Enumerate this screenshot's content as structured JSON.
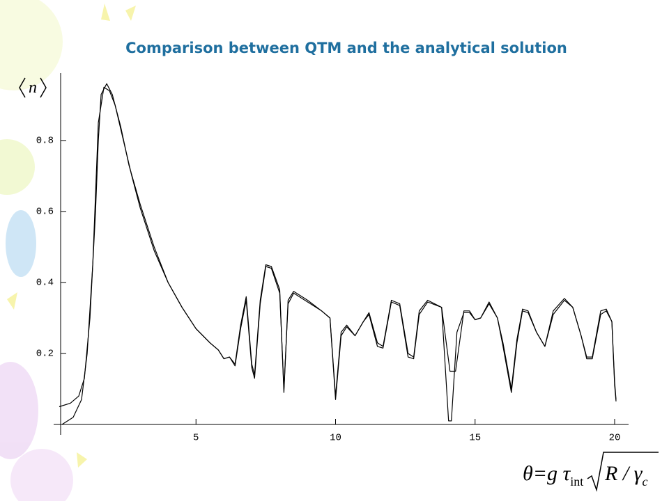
{
  "chart_data": {
    "type": "line",
    "title": "Comparison between QTM and the analytical solution",
    "y_label": "n",
    "x_label": {
      "main": "θ=g τ",
      "sub": "int",
      "root": "R / γ",
      "root_sub": "c"
    },
    "xlim": [
      -0.1,
      20.5
    ],
    "ylim": [
      0,
      0.99
    ],
    "xticks": [
      5,
      10,
      15,
      20
    ],
    "yticks": [
      0.2,
      0.4,
      0.6,
      0.8
    ],
    "series": [
      {
        "color": "#000000",
        "x": [
          0.1,
          0.5,
          0.8,
          1.0,
          1.2,
          1.4,
          1.5,
          1.6,
          1.8,
          2.0,
          2.3,
          2.6,
          3.0,
          3.5,
          4.0,
          4.5,
          5.0,
          5.5,
          5.8,
          6.0,
          6.2,
          6.4,
          6.6,
          6.8,
          7.0,
          7.1,
          7.3,
          7.5,
          7.7,
          8.0,
          8.15,
          8.3,
          8.5,
          9.0,
          9.5,
          9.8,
          10.0,
          10.2,
          10.4,
          10.7,
          11.0,
          11.2,
          11.5,
          11.7,
          12.0,
          12.3,
          12.6,
          12.8,
          13.0,
          13.3,
          13.8,
          14.1,
          14.3,
          14.6,
          14.8,
          15.0,
          15.2,
          15.5,
          15.8,
          16.0,
          16.3,
          16.5,
          16.7,
          16.9,
          17.2,
          17.5,
          17.8,
          18.2,
          18.5,
          18.8,
          19.0,
          19.2,
          19.5,
          19.7,
          19.9,
          20.0,
          20.05
        ],
        "values": [
          0.05,
          0.06,
          0.08,
          0.13,
          0.3,
          0.6,
          0.8,
          0.93,
          0.96,
          0.93,
          0.84,
          0.73,
          0.62,
          0.5,
          0.4,
          0.33,
          0.27,
          0.23,
          0.21,
          0.185,
          0.19,
          0.17,
          0.28,
          0.36,
          0.17,
          0.14,
          0.35,
          0.45,
          0.445,
          0.38,
          0.09,
          0.35,
          0.375,
          0.35,
          0.32,
          0.3,
          0.08,
          0.26,
          0.28,
          0.25,
          0.29,
          0.315,
          0.23,
          0.22,
          0.35,
          0.34,
          0.2,
          0.19,
          0.32,
          0.35,
          0.33,
          0.15,
          0.15,
          0.32,
          0.32,
          0.295,
          0.3,
          0.345,
          0.3,
          0.23,
          0.1,
          0.24,
          0.325,
          0.32,
          0.26,
          0.22,
          0.32,
          0.355,
          0.33,
          0.25,
          0.19,
          0.19,
          0.32,
          0.325,
          0.29,
          0.12,
          0.07
        ]
      },
      {
        "color": "#000000",
        "x": [
          0.2,
          0.6,
          0.9,
          1.1,
          1.3,
          1.5,
          1.7,
          1.9,
          2.1,
          2.4,
          2.7,
          3.0,
          3.5,
          4.0,
          4.5,
          5.0,
          5.5,
          5.8,
          6.0,
          6.2,
          6.4,
          6.6,
          6.8,
          7.0,
          7.1,
          7.3,
          7.5,
          7.7,
          8.0,
          8.15,
          8.3,
          8.5,
          9.0,
          9.5,
          9.8,
          10.0,
          10.2,
          10.4,
          10.7,
          11.0,
          11.2,
          11.5,
          11.7,
          12.0,
          12.3,
          12.6,
          12.8,
          13.0,
          13.3,
          13.8,
          14.05,
          14.15,
          14.35,
          14.6,
          14.8,
          15.0,
          15.2,
          15.5,
          15.8,
          16.0,
          16.3,
          16.5,
          16.7,
          16.9,
          17.2,
          17.5,
          17.8,
          18.2,
          18.5,
          18.8,
          19.0,
          19.2,
          19.5,
          19.7,
          19.9,
          20.0,
          20.05
        ],
        "values": [
          0.0,
          0.02,
          0.07,
          0.2,
          0.45,
          0.85,
          0.95,
          0.94,
          0.9,
          0.8,
          0.7,
          0.61,
          0.49,
          0.4,
          0.33,
          0.27,
          0.23,
          0.21,
          0.185,
          0.19,
          0.165,
          0.27,
          0.35,
          0.16,
          0.13,
          0.34,
          0.445,
          0.44,
          0.37,
          0.1,
          0.34,
          0.37,
          0.345,
          0.32,
          0.3,
          0.07,
          0.25,
          0.275,
          0.25,
          0.29,
          0.31,
          0.22,
          0.215,
          0.345,
          0.335,
          0.19,
          0.185,
          0.31,
          0.345,
          0.33,
          0.01,
          0.01,
          0.26,
          0.315,
          0.315,
          0.295,
          0.3,
          0.34,
          0.3,
          0.22,
          0.09,
          0.23,
          0.32,
          0.315,
          0.26,
          0.22,
          0.31,
          0.35,
          0.33,
          0.25,
          0.185,
          0.185,
          0.31,
          0.32,
          0.29,
          0.11,
          0.065
        ]
      }
    ]
  }
}
